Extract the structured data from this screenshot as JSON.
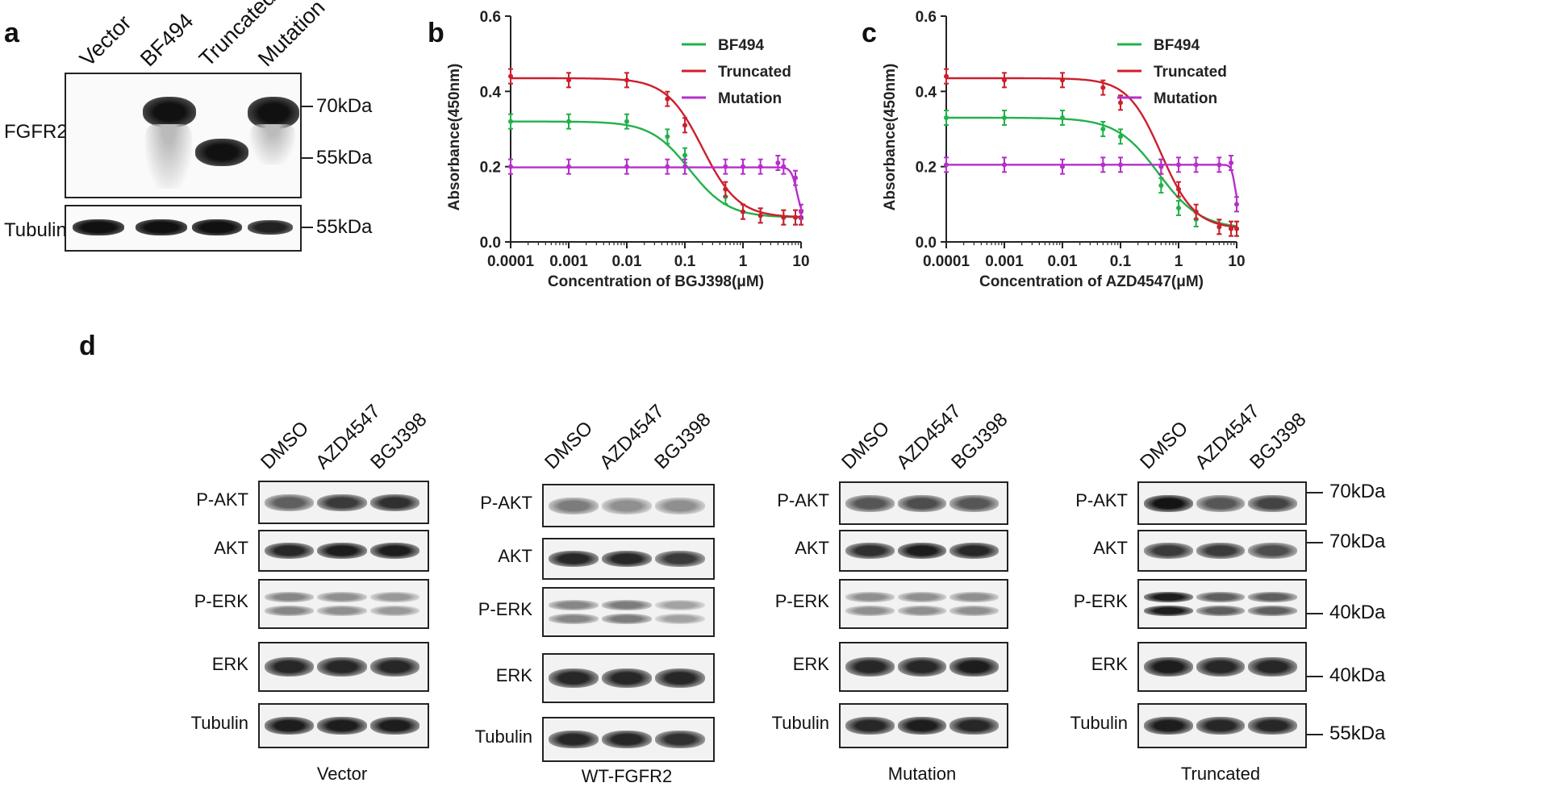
{
  "panels": {
    "a": "a",
    "b": "b",
    "c": "c",
    "d": "d"
  },
  "panel_a": {
    "lanes": [
      "Vector",
      "BF494",
      "Truncated",
      "Mutation"
    ],
    "rows": [
      {
        "label": "FGFR2",
        "markers": [
          "70kDa",
          "55kDa"
        ]
      },
      {
        "label": "Tubulin",
        "markers": [
          "55kDa"
        ]
      }
    ]
  },
  "chart_data": [
    {
      "type": "line",
      "xlabel": "Concentration of BGJ398(μM)",
      "ylabel": "Absorbance(450nm)",
      "x_scale": "log",
      "xlim": [
        0.0001,
        10
      ],
      "ylim": [
        0,
        0.6
      ],
      "x_ticks": [
        "0.0001",
        "0.001",
        "0.01",
        "0.1",
        "1",
        "10"
      ],
      "y_ticks": [
        "0.0",
        "0.2",
        "0.4",
        "0.6"
      ],
      "legend_position": "top-right",
      "series": [
        {
          "name": "BF494",
          "color": "#22b14c",
          "top": 0.32,
          "bottom": 0.065,
          "ic50": 0.12,
          "hill": 1.3,
          "x": [
            0.0001,
            0.001,
            0.01,
            0.05,
            0.1,
            0.5,
            1,
            2,
            5,
            8,
            10
          ],
          "y": [
            0.32,
            0.32,
            0.32,
            0.28,
            0.23,
            0.12,
            0.08,
            0.07,
            0.065,
            0.065,
            0.065
          ]
        },
        {
          "name": "Truncated",
          "color": "#cc1f2e",
          "top": 0.435,
          "bottom": 0.065,
          "ic50": 0.2,
          "hill": 1.4,
          "x": [
            0.0001,
            0.001,
            0.01,
            0.05,
            0.1,
            0.5,
            1,
            2,
            5,
            8,
            10
          ],
          "y": [
            0.44,
            0.43,
            0.43,
            0.38,
            0.31,
            0.14,
            0.08,
            0.07,
            0.065,
            0.065,
            0.065
          ]
        },
        {
          "name": "Mutation",
          "color": "#b52fc9",
          "top": 0.198,
          "bottom": 0.065,
          "ic50": 8.5,
          "hill": 9,
          "x": [
            0.0001,
            0.001,
            0.01,
            0.05,
            0.1,
            0.5,
            1,
            2,
            4,
            5,
            8,
            10
          ],
          "y": [
            0.2,
            0.2,
            0.2,
            0.2,
            0.2,
            0.2,
            0.2,
            0.2,
            0.21,
            0.2,
            0.17,
            0.08
          ]
        }
      ]
    },
    {
      "type": "line",
      "xlabel": "Concentration of AZD4547(μM)",
      "ylabel": "Absorbance(450nm)",
      "x_scale": "log",
      "xlim": [
        0.0001,
        10
      ],
      "ylim": [
        0,
        0.6
      ],
      "x_ticks": [
        "0.0001",
        "0.001",
        "0.01",
        "0.1",
        "1",
        "10"
      ],
      "y_ticks": [
        "0.0",
        "0.2",
        "0.4",
        "0.6"
      ],
      "legend_position": "top-right",
      "series": [
        {
          "name": "BF494",
          "color": "#22b14c",
          "top": 0.33,
          "bottom": 0.035,
          "ic50": 0.45,
          "hill": 1.2,
          "x": [
            0.0001,
            0.001,
            0.01,
            0.05,
            0.1,
            0.5,
            1,
            2,
            5,
            8,
            10
          ],
          "y": [
            0.33,
            0.33,
            0.33,
            0.3,
            0.28,
            0.15,
            0.09,
            0.06,
            0.04,
            0.035,
            0.035
          ]
        },
        {
          "name": "Truncated",
          "color": "#cc1f2e",
          "top": 0.435,
          "bottom": 0.035,
          "ic50": 0.5,
          "hill": 1.5,
          "x": [
            0.0001,
            0.001,
            0.01,
            0.05,
            0.1,
            0.5,
            1,
            2,
            5,
            8,
            10
          ],
          "y": [
            0.44,
            0.43,
            0.43,
            0.41,
            0.37,
            0.2,
            0.14,
            0.08,
            0.04,
            0.035,
            0.035
          ]
        },
        {
          "name": "Mutation",
          "color": "#b52fc9",
          "top": 0.205,
          "bottom": 0.09,
          "ic50": 9.3,
          "hill": 14,
          "x": [
            0.0001,
            0.001,
            0.01,
            0.05,
            0.1,
            0.5,
            1,
            2,
            5,
            8,
            10
          ],
          "y": [
            0.205,
            0.205,
            0.2,
            0.205,
            0.205,
            0.2,
            0.205,
            0.205,
            0.205,
            0.21,
            0.1
          ]
        }
      ]
    }
  ],
  "panel_d": {
    "lanes": [
      "DMSO",
      "AZD4547",
      "BGJ398"
    ],
    "row_labels": [
      "P-AKT",
      "AKT",
      "P-ERK",
      "ERK",
      "Tubulin"
    ],
    "groups": [
      "Vector",
      "WT-FGFR2",
      "Mutation",
      "Truncated"
    ],
    "markers": [
      "70kDa",
      "70kDa",
      "40kDa",
      "40kDa",
      "55kDa"
    ]
  }
}
